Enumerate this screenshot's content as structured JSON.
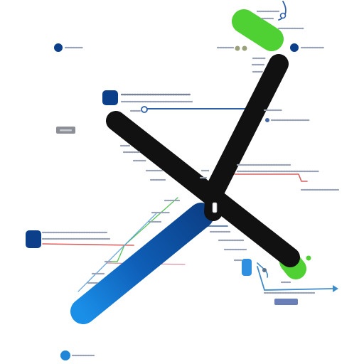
{
  "canvas": {
    "background": "#ffffff"
  },
  "icons": {
    "mark": "x-mark-logo-icon",
    "markers": "circle-marker-icon",
    "square_markers": "rounded-square-marker-icon"
  },
  "colors": {
    "black_stroke": "#111111",
    "blue_stroke_start": "#0b3f86",
    "blue_stroke_end": "#1784e0",
    "green_cap": "#4fd133",
    "navy_marker": "#0c3f8a",
    "blue_marker": "#1f86d8",
    "gray_badge": "#8c8f96",
    "slate_badge": "#6a7fb8",
    "leader_blue": "#2f5fa8",
    "leader_red": "#d86060",
    "leader_pink": "#d990a0",
    "leader_green": "#5cc55c",
    "leader_gray": "#9aa0aa",
    "scribble": "#9aa3b5"
  }
}
